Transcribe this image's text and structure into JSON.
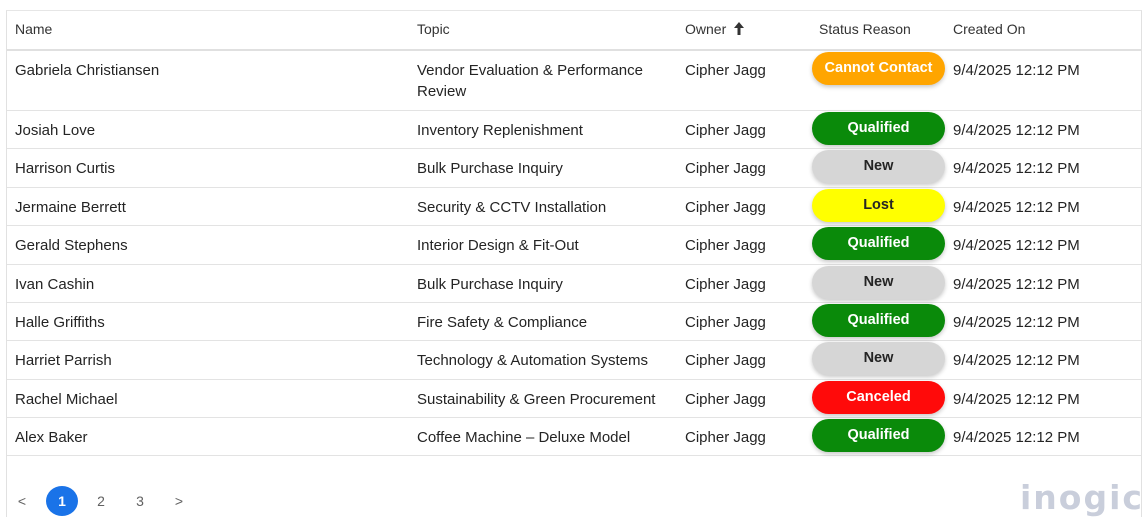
{
  "columns": {
    "name": "Name",
    "topic": "Topic",
    "owner": "Owner",
    "status": "Status Reason",
    "created": "Created On"
  },
  "rows": [
    {
      "name": "Gabriela Christiansen",
      "topic": "Vendor Evaluation & Performance Review",
      "owner": "Cipher Jagg",
      "status": "Cannot Contact",
      "created": "9/4/2025 12:12 PM"
    },
    {
      "name": "Josiah Love",
      "topic": "Inventory Replenishment",
      "owner": "Cipher Jagg",
      "status": "Qualified",
      "created": "9/4/2025 12:12 PM"
    },
    {
      "name": "Harrison Curtis",
      "topic": "Bulk Purchase Inquiry",
      "owner": "Cipher Jagg",
      "status": "New",
      "created": "9/4/2025 12:12 PM"
    },
    {
      "name": "Jermaine Berrett",
      "topic": "Security & CCTV Installation",
      "owner": "Cipher Jagg",
      "status": "Lost",
      "created": "9/4/2025 12:12 PM"
    },
    {
      "name": "Gerald Stephens",
      "topic": "Interior Design & Fit-Out",
      "owner": "Cipher Jagg",
      "status": "Qualified",
      "created": "9/4/2025 12:12 PM"
    },
    {
      "name": "Ivan Cashin",
      "topic": "Bulk Purchase Inquiry",
      "owner": "Cipher Jagg",
      "status": "New",
      "created": "9/4/2025 12:12 PM"
    },
    {
      "name": "Halle Griffiths",
      "topic": "Fire Safety & Compliance",
      "owner": "Cipher Jagg",
      "status": "Qualified",
      "created": "9/4/2025 12:12 PM"
    },
    {
      "name": "Harriet Parrish",
      "topic": "Technology & Automation Systems",
      "owner": "Cipher Jagg",
      "status": "New",
      "created": "9/4/2025 12:12 PM"
    },
    {
      "name": "Rachel Michael",
      "topic": "Sustainability & Green Procurement",
      "owner": "Cipher Jagg",
      "status": "Canceled",
      "created": "9/4/2025 12:12 PM"
    },
    {
      "name": "Alex Baker",
      "topic": "Coffee Machine – Deluxe Model",
      "owner": "Cipher Jagg",
      "status": "Qualified",
      "created": "9/4/2025 12:12 PM"
    }
  ],
  "status_colors": {
    "Cannot Contact": {
      "bg": "#ffa500",
      "fg": "#ffffff"
    },
    "Qualified": {
      "bg": "#0a8a0a",
      "fg": "#ffffff"
    },
    "New": {
      "bg": "#d6d6d6",
      "fg": "#242424"
    },
    "Lost": {
      "bg": "#ffff00",
      "fg": "#242424"
    },
    "Canceled": {
      "bg": "#ff0a0a",
      "fg": "#ffffff"
    }
  },
  "pagination": {
    "prev": "<",
    "pages": [
      "1",
      "2",
      "3"
    ],
    "current": "1",
    "next": ">"
  },
  "icons": {
    "owner_sort": "arrow-up-icon"
  },
  "branding": {
    "logo": "inogic"
  }
}
